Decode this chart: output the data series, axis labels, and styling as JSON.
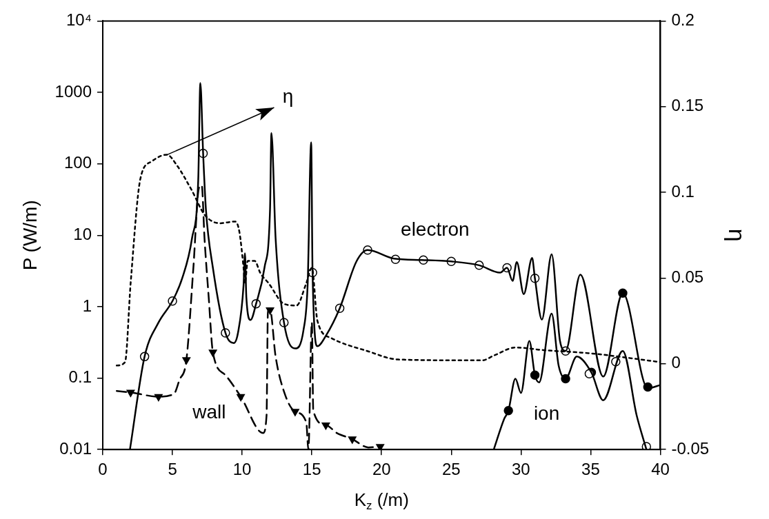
{
  "chart_data": {
    "type": "line",
    "xlabel": "K$_{z}$ (/m)",
    "ylabel": "P (W/m)",
    "y2label": "η",
    "log": true,
    "xlim": [
      0,
      40
    ],
    "xticks": [
      0,
      5,
      10,
      15,
      20,
      25,
      30,
      35,
      40
    ],
    "ylim": [
      0.01,
      10000
    ],
    "yticks": [
      0.01,
      0.1,
      1,
      10,
      100,
      1000,
      {
        "value": 10000,
        "label": "10⁴"
      }
    ],
    "y2lim": [
      -0.05,
      0.2
    ],
    "y2ticks": [
      -0.05,
      0,
      0.05,
      0.1,
      0.15,
      0.2
    ],
    "series": [
      {
        "name": "η",
        "color": "#000000",
        "line_style": "dotted",
        "axis": "y2",
        "x": [
          1,
          1.6,
          2,
          2.7,
          3.5,
          4.6,
          5.3,
          6.4,
          7.3,
          8.4,
          9.5,
          9.8,
          10.1,
          10.2,
          10.4,
          10.9,
          11.3,
          11.9,
          13,
          13.9,
          14.6,
          15,
          15.4,
          16.4,
          19,
          21.2,
          27.2,
          28.1,
          29.6,
          31.6,
          35.1,
          40
        ],
        "values": [
          -0.001,
          0.001,
          0.047,
          0.108,
          0.118,
          0.122,
          0.116,
          0.101,
          0.087,
          0.082,
          0.083,
          0.077,
          0.056,
          0.047,
          0.06,
          0.06,
          0.053,
          0.047,
          0.035,
          0.034,
          0.047,
          0.056,
          0.025,
          0.015,
          0.0074,
          0.0025,
          0.002,
          0.005,
          0.0095,
          0.008,
          0.006,
          0.001
        ]
      },
      {
        "name": "wall",
        "color": "#000000",
        "line_style": "dashed",
        "x": [
          1,
          2,
          4,
          5.1,
          5.5,
          6,
          6.5,
          6.9,
          7.1,
          7.3,
          7.6,
          7.9,
          8.8,
          9.9,
          11.5,
          11.75,
          11.85,
          12,
          12.4,
          13.1,
          13.8,
          14.6,
          14.75,
          15,
          15.1,
          16,
          16.8,
          17.9,
          19.05,
          19.9
        ],
        "values": [
          0.066,
          0.063,
          0.055,
          0.06,
          0.094,
          0.18,
          3.5,
          46,
          50,
          9,
          1.35,
          0.23,
          0.11,
          0.055,
          0.017,
          0.03,
          0.9,
          0.9,
          0.2,
          0.057,
          0.034,
          0.024,
          0.01,
          0.6,
          0.035,
          0.022,
          0.017,
          0.014,
          0.0107,
          0.011
        ]
      },
      {
        "name": "electron",
        "color": "#000000",
        "line_style": "solid",
        "x": [
          1.95,
          3,
          4,
          5,
          5.7,
          6.4,
          6.85,
          7.0,
          7.2,
          7.4,
          7.9,
          8.8,
          9.4,
          9.7,
          10.1,
          10.2,
          10.3,
          10.6,
          11,
          11.6,
          12,
          12.1,
          12.4,
          13,
          13.8,
          14.4,
          14.7,
          14.95,
          15.05,
          15.4,
          16,
          17,
          18.2,
          19,
          20.9,
          22.9,
          25,
          27,
          28.5,
          29,
          29.4,
          29.7,
          30.2,
          30.8,
          31,
          31.5,
          32.2,
          32.8,
          33.2,
          34.26,
          35.9,
          37.3,
          39.1,
          40
        ],
        "values": [
          0.01,
          0.2,
          0.6,
          1.2,
          2.5,
          9,
          60,
          1350,
          140,
          23,
          3.5,
          0.43,
          0.31,
          0.43,
          2,
          5.6,
          1.35,
          0.65,
          1.1,
          3.5,
          23,
          270,
          9,
          0.6,
          0.26,
          0.47,
          2.1,
          200,
          3,
          0.28,
          0.39,
          0.95,
          4.3,
          6.2,
          4.7,
          4.5,
          4.3,
          3.8,
          3.0,
          3.5,
          2.3,
          4.2,
          1.5,
          4.8,
          2.5,
          0.66,
          5.4,
          0.33,
          0.24,
          2.8,
          0.105,
          1.55,
          0.072,
          0.08
        ]
      },
      {
        "name": "ion",
        "color": "#000000",
        "line_style": "solid",
        "x": [
          28.05,
          28.8,
          29.1,
          29.6,
          30.0,
          30.6,
          31.0,
          31.3,
          32.2,
          32.7,
          33.2,
          34.0,
          35.05,
          35.9,
          37.3,
          38.3,
          39.0
        ],
        "values": [
          0.01,
          0.027,
          0.035,
          0.098,
          0.062,
          0.33,
          0.11,
          0.087,
          0.8,
          0.15,
          0.098,
          0.2,
          0.12,
          0.049,
          0.24,
          0.03,
          0.01
        ]
      },
      {
        "type": "scatter",
        "color": "#ffffff",
        "marker": "circle",
        "x": [
          3,
          5,
          7.2,
          8.8,
          11,
          13,
          15.05,
          17,
          19,
          21,
          23,
          25,
          27,
          29,
          31,
          33.2,
          34.9,
          36.8,
          39
        ],
        "values": [
          0.2,
          1.2,
          140,
          0.43,
          1.1,
          0.6,
          3,
          0.95,
          6.2,
          4.6,
          4.5,
          4.3,
          3.8,
          3.5,
          2.5,
          0.24,
          0.115,
          0.17,
          0.011
        ]
      },
      {
        "type": "scatter",
        "color": "#000000",
        "marker": "circle",
        "x": [
          29.1,
          31.0,
          33.2,
          35.05,
          37.3,
          39.1
        ],
        "values": [
          0.035,
          0.11,
          0.098,
          0.12,
          1.55,
          0.075
        ]
      },
      {
        "type": "scatter",
        "color": "#000000",
        "marker": "triangle",
        "x": [
          2,
          4,
          6,
          7.9,
          9.9,
          12,
          13.8,
          16,
          17.9,
          19.9
        ],
        "values": [
          0.063,
          0.055,
          0.18,
          0.23,
          0.055,
          0.9,
          0.034,
          0.022,
          0.014,
          0.011
        ]
      }
    ]
  }
}
